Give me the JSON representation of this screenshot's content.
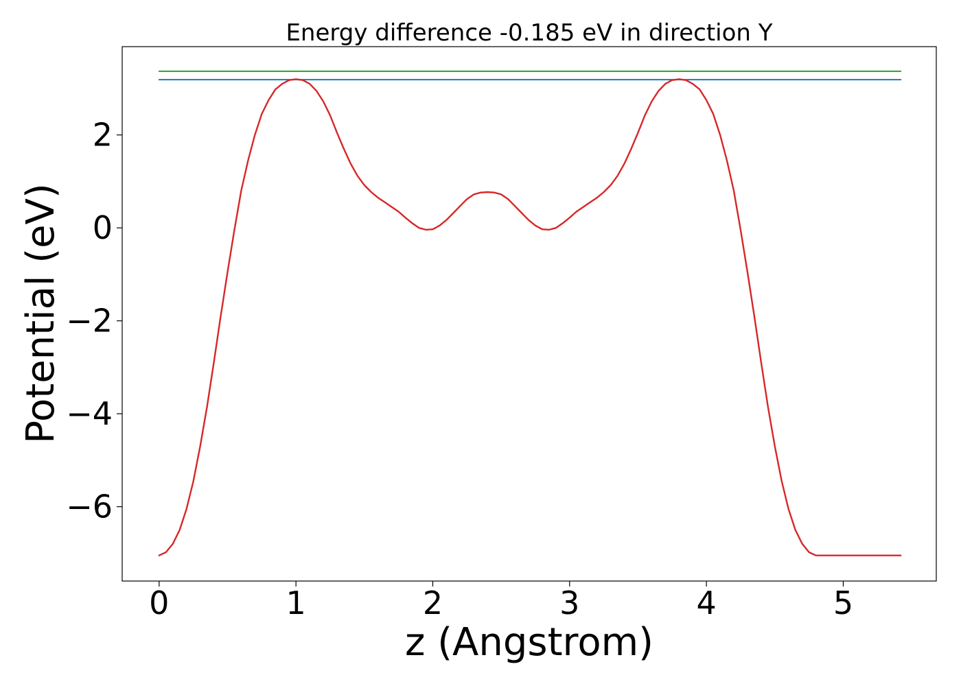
{
  "chart_data": {
    "type": "line",
    "title": "Energy difference -0.185 eV in direction Y",
    "xlabel": "z (Angstrom)",
    "ylabel": "Potential (eV)",
    "xlim": [
      -0.27,
      5.68
    ],
    "ylim": [
      -7.6,
      3.9
    ],
    "x_ticks": [
      0,
      1,
      2,
      3,
      4,
      5
    ],
    "x_tick_labels": [
      "0",
      "1",
      "2",
      "3",
      "4",
      "5"
    ],
    "y_ticks": [
      2,
      0,
      -2,
      -4,
      -6
    ],
    "y_tick_labels": [
      "2",
      "0",
      "−2",
      "−4",
      "−6"
    ],
    "grid": false,
    "series": [
      {
        "color": "#2ca02c",
        "x": [
          0,
          5.42
        ],
        "y": [
          3.37,
          3.37
        ]
      },
      {
        "color": "#1f77b4",
        "x": [
          0,
          5.42
        ],
        "y": [
          3.19,
          3.19
        ]
      },
      {
        "color": "#d62728",
        "x": [
          0,
          0.05,
          0.1,
          0.15,
          0.2,
          0.25,
          0.3,
          0.35,
          0.4,
          0.45,
          0.5,
          0.55,
          0.6,
          0.65,
          0.7,
          0.75,
          0.8,
          0.85,
          0.9,
          0.95,
          1.0,
          1.05,
          1.1,
          1.15,
          1.2,
          1.25,
          1.3,
          1.35,
          1.4,
          1.45,
          1.5,
          1.55,
          1.6,
          1.65,
          1.7,
          1.75,
          1.8,
          1.85,
          1.9,
          1.95,
          2.0,
          2.05,
          2.1,
          2.15,
          2.2,
          2.25,
          2.3,
          2.35,
          2.4,
          2.45,
          2.5,
          2.55,
          2.6,
          2.65,
          2.7,
          2.75,
          2.8,
          2.85,
          2.9,
          2.95,
          3.0,
          3.05,
          3.1,
          3.15,
          3.2,
          3.25,
          3.3,
          3.35,
          3.4,
          3.45,
          3.5,
          3.55,
          3.6,
          3.65,
          3.7,
          3.75,
          3.8,
          3.85,
          3.9,
          3.95,
          4.0,
          4.05,
          4.1,
          4.15,
          4.2,
          4.25,
          4.3,
          4.35,
          4.4,
          4.45,
          4.5,
          4.55,
          4.6,
          4.65,
          4.7,
          4.75,
          4.8,
          4.85,
          4.9,
          4.95,
          5.0,
          5.05,
          5.1,
          5.15,
          5.2,
          5.25,
          5.3,
          5.35,
          5.42
        ],
        "y": [
          -7.05,
          -6.98,
          -6.8,
          -6.5,
          -6.05,
          -5.45,
          -4.7,
          -3.85,
          -2.9,
          -1.9,
          -0.95,
          -0.05,
          0.8,
          1.45,
          2.0,
          2.45,
          2.75,
          2.98,
          3.1,
          3.18,
          3.2,
          3.18,
          3.1,
          2.95,
          2.72,
          2.42,
          2.05,
          1.7,
          1.38,
          1.12,
          0.92,
          0.77,
          0.65,
          0.55,
          0.45,
          0.35,
          0.22,
          0.1,
          0.0,
          -0.04,
          -0.03,
          0.05,
          0.17,
          0.32,
          0.47,
          0.62,
          0.72,
          0.76,
          0.77,
          0.76,
          0.72,
          0.62,
          0.47,
          0.32,
          0.17,
          0.05,
          -0.03,
          -0.04,
          0.0,
          0.1,
          0.22,
          0.35,
          0.45,
          0.55,
          0.65,
          0.77,
          0.92,
          1.12,
          1.38,
          1.7,
          2.05,
          2.42,
          2.72,
          2.95,
          3.1,
          3.18,
          3.2,
          3.18,
          3.1,
          2.98,
          2.75,
          2.45,
          2.0,
          1.45,
          0.8,
          -0.05,
          -0.95,
          -1.9,
          -2.9,
          -3.85,
          -4.7,
          -5.45,
          -6.05,
          -6.5,
          -6.8,
          -6.98,
          -7.05,
          -7.05,
          -7.05,
          -7.05,
          -7.05,
          -7.05,
          -7.05,
          -7.05,
          -7.05,
          -7.05,
          -7.05,
          -7.05,
          -7.05
        ]
      }
    ]
  }
}
